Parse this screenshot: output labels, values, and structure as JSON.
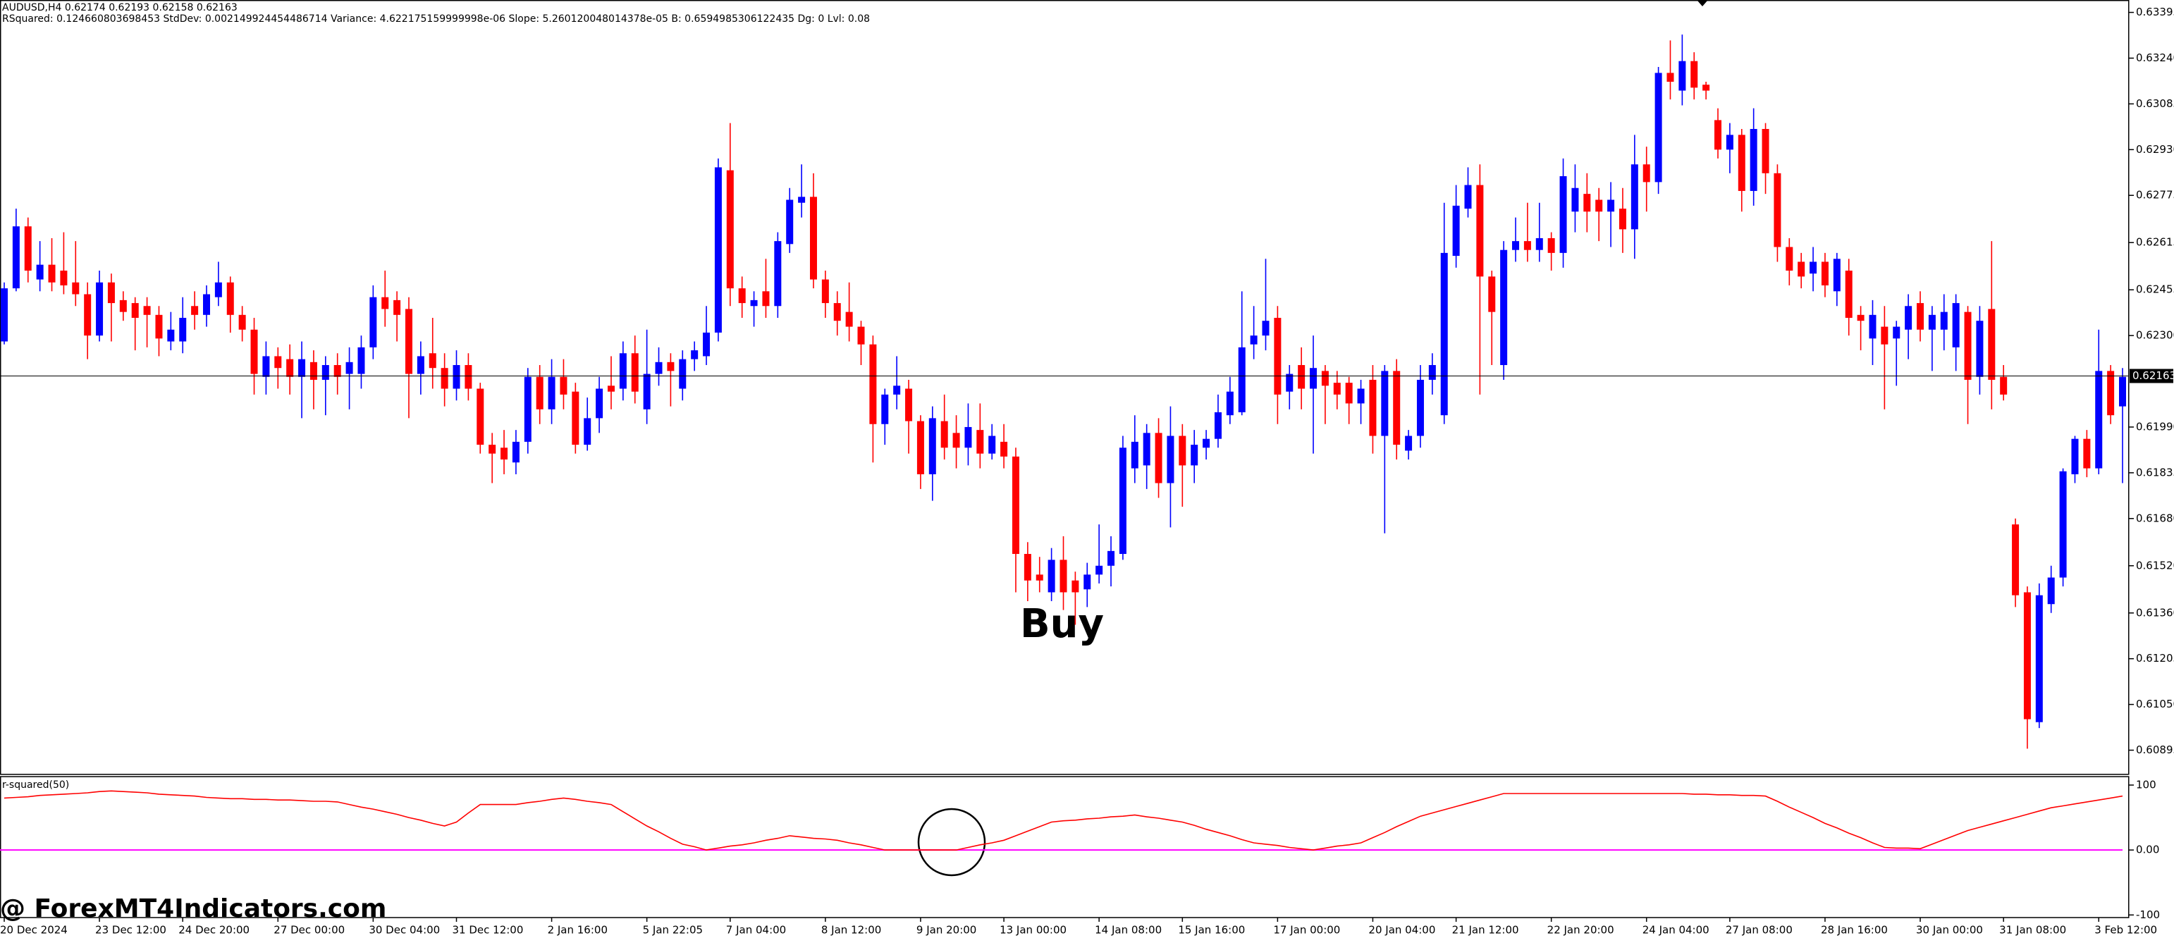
{
  "header": {
    "symbol_line": "AUDUSD,H4  0.62174 0.62193 0.62158 0.62163",
    "stats_line": "RSquared: 0.124660803698453 StdDev: 0.002149924454486714 Variance: 4.622175159999998e-06 Slope: 5.260120048014378e-05 B: 0.6594985306122435 Dg: 0 Lvl: 0.08"
  },
  "annotations": {
    "signal": "Buy",
    "watermark": "@ ForexMT4Indicators.com"
  },
  "chart_data": [
    {
      "type": "candlestick",
      "categories": [
        "20 Dec 2024",
        null,
        null,
        null,
        null,
        null,
        null,
        null,
        "23 Dec 12:00",
        null,
        null,
        null,
        null,
        null,
        null,
        "24 Dec 20:00",
        null,
        null,
        null,
        null,
        null,
        null,
        null,
        "27 Dec 00:00",
        null,
        null,
        null,
        null,
        null,
        null,
        null,
        "30 Dec 04:00",
        null,
        null,
        null,
        null,
        null,
        null,
        "31 Dec 12:00",
        null,
        null,
        null,
        null,
        null,
        null,
        null,
        "2 Jan 16:00",
        null,
        null,
        null,
        null,
        null,
        null,
        null,
        "5 Jan 22:05",
        null,
        null,
        null,
        null,
        null,
        null,
        "7 Jan 04:00",
        null,
        null,
        null,
        null,
        null,
        null,
        null,
        "8 Jan 12:00",
        null,
        null,
        null,
        null,
        null,
        null,
        null,
        "9 Jan 20:00",
        null,
        null,
        null,
        null,
        null,
        null,
        "13 Jan 00:00",
        null,
        null,
        null,
        null,
        null,
        null,
        null,
        "14 Jan 08:00",
        null,
        null,
        null,
        null,
        null,
        null,
        "15 Jan 16:00",
        null,
        null,
        null,
        null,
        null,
        null,
        null,
        "17 Jan 00:00",
        null,
        null,
        null,
        null,
        null,
        null,
        null,
        "20 Jan 04:00",
        null,
        null,
        null,
        null,
        null,
        null,
        "21 Jan 12:00",
        null,
        null,
        null,
        null,
        null,
        null,
        null,
        "22 Jan 20:00",
        null,
        null,
        null,
        null,
        null,
        null,
        null,
        "24 Jan 04:00",
        null,
        null,
        null,
        null,
        null,
        null,
        "27 Jan 08:00",
        null,
        null,
        null,
        null,
        null,
        null,
        null,
        "28 Jan 16:00",
        null,
        null,
        null,
        null,
        null,
        null,
        null,
        "30 Jan 00:00",
        null,
        null,
        null,
        null,
        null,
        null,
        "31 Jan 08:00",
        null,
        null,
        null,
        null,
        null,
        null,
        null,
        "3 Feb 12:00",
        null,
        null
      ],
      "open": [
        0.6228,
        0.6246,
        0.6267,
        0.6249,
        0.6254,
        0.6252,
        0.6248,
        0.6244,
        0.623,
        0.6248,
        0.6242,
        0.6241,
        0.624,
        0.6237,
        0.6228,
        0.6228,
        0.624,
        0.6237,
        0.6243,
        0.6248,
        0.6237,
        0.6232,
        0.6216,
        0.6223,
        0.6222,
        0.6216,
        0.6221,
        0.6215,
        0.622,
        0.6217,
        0.6217,
        0.6226,
        0.6243,
        0.6242,
        0.6239,
        0.6217,
        0.6224,
        0.6219,
        0.6212,
        0.622,
        0.6212,
        0.6193,
        0.6192,
        0.6187,
        0.6194,
        0.6216,
        0.6205,
        0.6216,
        0.6211,
        0.6193,
        0.6202,
        0.6213,
        0.6212,
        0.6224,
        0.6205,
        0.6217,
        0.6221,
        0.6212,
        0.6222,
        0.6223,
        0.6231,
        0.6286,
        0.6246,
        0.624,
        0.6245,
        0.624,
        0.6261,
        0.6275,
        0.6277,
        0.6249,
        0.6241,
        0.6238,
        0.6233,
        0.6227,
        0.62,
        0.621,
        0.6212,
        0.6201,
        0.6183,
        0.6201,
        0.6197,
        0.6192,
        0.6198,
        0.619,
        0.6194,
        0.6189,
        0.6156,
        0.6149,
        0.6143,
        0.6154,
        0.6147,
        0.6144,
        0.6149,
        0.6152,
        0.6156,
        0.6185,
        0.6186,
        0.6197,
        0.618,
        0.6196,
        0.6186,
        0.6192,
        0.6195,
        0.6203,
        0.6204,
        0.6227,
        0.623,
        0.6236,
        0.6211,
        0.622,
        0.6212,
        0.6218,
        0.6214,
        0.6214,
        0.6207,
        0.6215,
        0.6196,
        0.6218,
        0.6191,
        0.6196,
        0.6215,
        0.6203,
        0.6257,
        0.6273,
        0.6281,
        0.625,
        0.622,
        0.6259,
        0.6262,
        0.6259,
        0.6263,
        0.6258,
        0.6272,
        0.6278,
        0.6276,
        0.6272,
        0.6273,
        0.6266,
        0.6288,
        0.6282,
        0.6319,
        0.6313,
        0.6323,
        0.6315,
        0.6303,
        0.6293,
        0.6298,
        0.6279,
        0.63,
        0.6285,
        0.626,
        0.6255,
        0.6251,
        0.6255,
        0.6245,
        0.6252,
        0.6237,
        0.6229,
        0.6233,
        0.6229,
        0.6232,
        0.6241,
        0.6232,
        0.6232,
        0.6226,
        0.6238,
        0.6216,
        0.6239,
        0.6216,
        0.6166,
        0.6143,
        0.6099,
        0.6139,
        0.6148,
        0.6183,
        0.6195,
        0.6185,
        0.6218,
        0.6206
      ],
      "high": [
        0.6248,
        0.6273,
        0.627,
        0.6262,
        0.6263,
        0.6265,
        0.6262,
        0.6248,
        0.6252,
        0.6251,
        0.6245,
        0.6243,
        0.6243,
        0.624,
        0.6238,
        0.6243,
        0.6245,
        0.6247,
        0.6255,
        0.625,
        0.624,
        0.6236,
        0.6228,
        0.6226,
        0.6227,
        0.6228,
        0.6225,
        0.6223,
        0.6224,
        0.6226,
        0.623,
        0.6247,
        0.6252,
        0.6245,
        0.6243,
        0.6228,
        0.6236,
        0.6224,
        0.6225,
        0.6224,
        0.6214,
        0.6197,
        0.6198,
        0.6198,
        0.6219,
        0.622,
        0.6222,
        0.6222,
        0.6214,
        0.6209,
        0.6216,
        0.6223,
        0.6228,
        0.623,
        0.6232,
        0.6226,
        0.6224,
        0.6225,
        0.6228,
        0.624,
        0.629,
        0.6302,
        0.625,
        0.6245,
        0.6256,
        0.6265,
        0.628,
        0.6288,
        0.6285,
        0.6252,
        0.6245,
        0.6248,
        0.6235,
        0.623,
        0.6212,
        0.6223,
        0.6215,
        0.6203,
        0.6206,
        0.621,
        0.6203,
        0.6207,
        0.6207,
        0.62,
        0.62,
        0.6192,
        0.616,
        0.6155,
        0.6158,
        0.6162,
        0.615,
        0.6153,
        0.6166,
        0.6162,
        0.6196,
        0.6203,
        0.62,
        0.6202,
        0.6206,
        0.62,
        0.6198,
        0.6198,
        0.621,
        0.6216,
        0.6245,
        0.624,
        0.6256,
        0.624,
        0.622,
        0.6226,
        0.623,
        0.622,
        0.6218,
        0.6216,
        0.6215,
        0.622,
        0.622,
        0.6222,
        0.6198,
        0.622,
        0.6224,
        0.6275,
        0.6281,
        0.6287,
        0.6288,
        0.6252,
        0.6262,
        0.627,
        0.6275,
        0.6275,
        0.6265,
        0.629,
        0.6288,
        0.6285,
        0.628,
        0.6282,
        0.628,
        0.6298,
        0.6294,
        0.6321,
        0.633,
        0.6332,
        0.6326,
        0.6316,
        0.6307,
        0.6302,
        0.63,
        0.6307,
        0.6302,
        0.6288,
        0.6263,
        0.6258,
        0.626,
        0.6258,
        0.6258,
        0.6256,
        0.624,
        0.6242,
        0.624,
        0.6235,
        0.6244,
        0.6245,
        0.624,
        0.6244,
        0.6244,
        0.624,
        0.624,
        0.6262,
        0.622,
        0.6168,
        0.6145,
        0.6146,
        0.6152,
        0.6185,
        0.6196,
        0.6198,
        0.6232,
        0.622,
        0.6219
      ],
      "low": [
        0.6227,
        0.6245,
        0.6248,
        0.6245,
        0.6245,
        0.6244,
        0.624,
        0.6222,
        0.6228,
        0.6228,
        0.6235,
        0.6225,
        0.6226,
        0.6223,
        0.6225,
        0.6224,
        0.6232,
        0.6233,
        0.624,
        0.6231,
        0.6228,
        0.621,
        0.621,
        0.6212,
        0.621,
        0.6202,
        0.6205,
        0.6203,
        0.621,
        0.6205,
        0.6212,
        0.6222,
        0.6233,
        0.6228,
        0.6202,
        0.621,
        0.6212,
        0.6206,
        0.6208,
        0.6208,
        0.619,
        0.618,
        0.6183,
        0.6183,
        0.619,
        0.62,
        0.62,
        0.6205,
        0.619,
        0.6191,
        0.6197,
        0.6205,
        0.6208,
        0.6207,
        0.62,
        0.6213,
        0.6206,
        0.6208,
        0.6218,
        0.622,
        0.6228,
        0.624,
        0.6236,
        0.6233,
        0.6236,
        0.6236,
        0.6258,
        0.627,
        0.6246,
        0.6236,
        0.623,
        0.6228,
        0.622,
        0.6187,
        0.6193,
        0.6205,
        0.619,
        0.6178,
        0.6174,
        0.6188,
        0.6185,
        0.6186,
        0.6185,
        0.6188,
        0.6185,
        0.6143,
        0.614,
        0.6143,
        0.614,
        0.6137,
        0.6132,
        0.6138,
        0.6146,
        0.6145,
        0.6154,
        0.618,
        0.6178,
        0.6175,
        0.6165,
        0.6172,
        0.618,
        0.6188,
        0.6192,
        0.62,
        0.6203,
        0.6222,
        0.6225,
        0.62,
        0.6205,
        0.6205,
        0.619,
        0.62,
        0.6205,
        0.62,
        0.62,
        0.619,
        0.6163,
        0.6188,
        0.6188,
        0.6192,
        0.621,
        0.62,
        0.6253,
        0.627,
        0.621,
        0.622,
        0.6215,
        0.6255,
        0.6255,
        0.6255,
        0.6252,
        0.6253,
        0.6265,
        0.6265,
        0.6262,
        0.626,
        0.6258,
        0.6256,
        0.6272,
        0.6278,
        0.631,
        0.6308,
        0.631,
        0.631,
        0.629,
        0.6285,
        0.6272,
        0.6274,
        0.6278,
        0.6255,
        0.6247,
        0.6246,
        0.6245,
        0.6243,
        0.624,
        0.623,
        0.6225,
        0.622,
        0.6205,
        0.6213,
        0.6222,
        0.6228,
        0.6218,
        0.6225,
        0.6218,
        0.62,
        0.621,
        0.6205,
        0.6208,
        0.6138,
        0.609,
        0.6097,
        0.6136,
        0.6145,
        0.618,
        0.6182,
        0.6183,
        0.62,
        0.618
      ],
      "close": [
        0.6246,
        0.6267,
        0.6252,
        0.6254,
        0.6248,
        0.6247,
        0.6244,
        0.623,
        0.6248,
        0.6241,
        0.6238,
        0.6236,
        0.6237,
        0.6229,
        0.6232,
        0.6236,
        0.6237,
        0.6244,
        0.6248,
        0.6237,
        0.6232,
        0.6217,
        0.6223,
        0.6219,
        0.6216,
        0.6222,
        0.6215,
        0.622,
        0.6216,
        0.6221,
        0.6226,
        0.6243,
        0.6239,
        0.6237,
        0.6217,
        0.6223,
        0.6219,
        0.6212,
        0.622,
        0.6212,
        0.6193,
        0.619,
        0.6188,
        0.6194,
        0.6216,
        0.6205,
        0.6216,
        0.621,
        0.6193,
        0.6202,
        0.6212,
        0.6211,
        0.6224,
        0.6211,
        0.6217,
        0.6221,
        0.6218,
        0.6222,
        0.6225,
        0.6231,
        0.6287,
        0.6246,
        0.6241,
        0.6242,
        0.624,
        0.6262,
        0.6276,
        0.6277,
        0.6249,
        0.6241,
        0.6235,
        0.6233,
        0.6227,
        0.62,
        0.621,
        0.6213,
        0.6201,
        0.6183,
        0.6202,
        0.6192,
        0.6192,
        0.6199,
        0.619,
        0.6196,
        0.6189,
        0.6156,
        0.6147,
        0.6147,
        0.6154,
        0.6143,
        0.6143,
        0.6149,
        0.6152,
        0.6157,
        0.6192,
        0.6194,
        0.6197,
        0.618,
        0.6196,
        0.6186,
        0.6193,
        0.6195,
        0.6204,
        0.6211,
        0.6226,
        0.623,
        0.6235,
        0.621,
        0.6217,
        0.6212,
        0.6219,
        0.6213,
        0.621,
        0.6207,
        0.6212,
        0.6196,
        0.6218,
        0.6193,
        0.6196,
        0.6215,
        0.622,
        0.6258,
        0.6274,
        0.6281,
        0.625,
        0.6238,
        0.6259,
        0.6262,
        0.6259,
        0.6263,
        0.6258,
        0.6284,
        0.628,
        0.6272,
        0.6272,
        0.6276,
        0.6266,
        0.6288,
        0.6282,
        0.6319,
        0.6316,
        0.6323,
        0.6314,
        0.6313,
        0.6293,
        0.6298,
        0.6279,
        0.63,
        0.6285,
        0.626,
        0.6252,
        0.625,
        0.6255,
        0.6247,
        0.6256,
        0.6236,
        0.6235,
        0.6237,
        0.6227,
        0.6233,
        0.624,
        0.6232,
        0.6237,
        0.6238,
        0.6241,
        0.6215,
        0.6235,
        0.6215,
        0.621,
        0.6142,
        0.61,
        0.6142,
        0.6148,
        0.6184,
        0.6195,
        0.6185,
        0.6218,
        0.6203,
        0.6216
      ],
      "up_color": "#0000ff",
      "down_color": "#ff0000",
      "ylim": [
        0.60815,
        0.63437
      ],
      "yticks": [
        0.63395,
        {
          "value": 0.6324,
          "label": "0.63240"
        },
        0.63085,
        {
          "value": 0.6293,
          "label": "0.62930"
        },
        0.62775,
        0.62615,
        0.62455,
        {
          "value": 0.623,
          "label": "0.62300"
        },
        {
          "value": 0.6199,
          "label": "0.61990"
        },
        0.61835,
        {
          "value": 0.6168,
          "label": "0.61680"
        },
        {
          "value": 0.6152,
          "label": "0.61520"
        },
        {
          "value": 0.6136,
          "label": "0.61360"
        },
        0.61205,
        {
          "value": 0.6105,
          "label": "0.61050"
        },
        0.60895
      ],
      "last_price": 0.62163,
      "grid": false
    },
    {
      "type": "line",
      "title": "r-squared(50)",
      "color": "#ff0000",
      "values": [
        80,
        81,
        82,
        84,
        85,
        86,
        87,
        88,
        90,
        91,
        90,
        89,
        88,
        86,
        85,
        84,
        83,
        81,
        80,
        79,
        79,
        78,
        78,
        77,
        77,
        76,
        75,
        75,
        74,
        70,
        66,
        63,
        59,
        55,
        50,
        46,
        41,
        37,
        43,
        57,
        70,
        70,
        70,
        70,
        73,
        75,
        78,
        80,
        78,
        75,
        73,
        70,
        59,
        48,
        37,
        28,
        18,
        9,
        5,
        0,
        3,
        6,
        8,
        11,
        15,
        18,
        22,
        20,
        18,
        17,
        15,
        11,
        8,
        4,
        0,
        0,
        0,
        0,
        0,
        0,
        0,
        4,
        8,
        11,
        15,
        22,
        29,
        36,
        43,
        45,
        46,
        48,
        49,
        51,
        52,
        54,
        51,
        49,
        46,
        43,
        38,
        32,
        27,
        22,
        16,
        11,
        9,
        7,
        4,
        2,
        0,
        3,
        6,
        8,
        11,
        19,
        27,
        36,
        44,
        52,
        57,
        62,
        67,
        72,
        77,
        82,
        87,
        87,
        87,
        87,
        87,
        87,
        87,
        87,
        87,
        87,
        87,
        87,
        87,
        87,
        87,
        87,
        86,
        86,
        85,
        85,
        84,
        84,
        83,
        75,
        66,
        58,
        50,
        41,
        34,
        26,
        19,
        11,
        4,
        3,
        3,
        2,
        9,
        16,
        23,
        30,
        35,
        40,
        45,
        50,
        55,
        60,
        65,
        68,
        71,
        74,
        77,
        80,
        83
      ],
      "levels": [
        0
      ],
      "level_color": "#ff00ff",
      "ylim": [
        -104,
        113
      ],
      "yticks": [
        100,
        {
          "value": 0,
          "label": "0.00"
        },
        -100
      ],
      "grid": false
    }
  ]
}
